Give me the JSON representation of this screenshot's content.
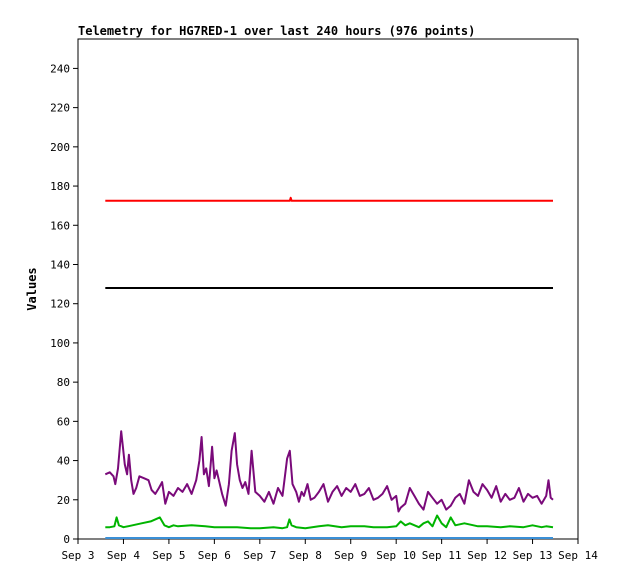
{
  "chart_data": {
    "type": "line",
    "title": "Telemetry for HG7RED-1 over last 240 hours (976 points)",
    "xlabel": "",
    "ylabel": "Values",
    "ylim": [
      0,
      255
    ],
    "yticks": [
      0,
      20,
      40,
      60,
      80,
      100,
      120,
      140,
      160,
      180,
      200,
      220,
      240
    ],
    "x_tick_labels": [
      "Sep 3",
      "Sep 4",
      "Sep 5",
      "Sep 6",
      "Sep 7",
      "Sep 8",
      "Sep 9",
      "Sep 10",
      "Sep 11",
      "Sep 12",
      "Sep 13",
      "Sep 14"
    ],
    "x_tick_days": [
      3,
      4,
      5,
      6,
      7,
      8,
      9,
      10,
      11,
      12,
      13,
      14
    ],
    "xlim_days": [
      3,
      14
    ],
    "grid": false,
    "series": [
      {
        "color": "#ff0000",
        "x_days": [
          3.6,
          7.66,
          7.68,
          7.7,
          13.45
        ],
        "values": [
          172.5,
          172.5,
          174,
          172.5,
          172.5
        ]
      },
      {
        "color": "#000000",
        "x_days": [
          3.6,
          13.45
        ],
        "values": [
          128,
          128
        ]
      },
      {
        "color": "#7a0a7a",
        "x_days": [
          3.6,
          3.7,
          3.78,
          3.82,
          3.88,
          3.95,
          4.03,
          4.08,
          4.12,
          4.17,
          4.22,
          4.28,
          4.35,
          4.45,
          4.55,
          4.62,
          4.7,
          4.78,
          4.85,
          4.92,
          5.0,
          5.1,
          5.2,
          5.3,
          5.4,
          5.5,
          5.6,
          5.67,
          5.72,
          5.77,
          5.82,
          5.88,
          5.95,
          6.0,
          6.05,
          6.1,
          6.17,
          6.25,
          6.32,
          6.38,
          6.45,
          6.5,
          6.56,
          6.62,
          6.68,
          6.75,
          6.82,
          6.9,
          7.0,
          7.1,
          7.2,
          7.3,
          7.4,
          7.5,
          7.6,
          7.66,
          7.72,
          7.8,
          7.86,
          7.92,
          7.97,
          8.05,
          8.12,
          8.2,
          8.3,
          8.4,
          8.5,
          8.6,
          8.7,
          8.8,
          8.9,
          9.0,
          9.1,
          9.2,
          9.3,
          9.4,
          9.5,
          9.6,
          9.7,
          9.8,
          9.9,
          10.0,
          10.05,
          10.1,
          10.2,
          10.3,
          10.4,
          10.5,
          10.6,
          10.7,
          10.8,
          10.9,
          11.0,
          11.1,
          11.2,
          11.3,
          11.4,
          11.5,
          11.6,
          11.7,
          11.8,
          11.9,
          12.0,
          12.1,
          12.2,
          12.3,
          12.4,
          12.5,
          12.6,
          12.7,
          12.8,
          12.9,
          13.0,
          13.1,
          13.2,
          13.3,
          13.35,
          13.4,
          13.45
        ],
        "values": [
          33,
          34,
          32,
          28,
          36,
          55,
          38,
          33,
          43,
          30,
          23,
          26,
          32,
          31,
          30,
          25,
          23,
          26,
          29,
          18,
          24,
          22,
          26,
          24,
          28,
          23,
          30,
          40,
          52,
          33,
          36,
          27,
          47,
          31,
          35,
          30,
          23,
          17,
          28,
          45,
          54,
          38,
          30,
          26,
          29,
          23,
          45,
          24,
          22,
          19,
          24,
          18,
          26,
          22,
          41,
          45,
          28,
          24,
          19,
          24,
          22,
          28,
          20,
          21,
          24,
          28,
          19,
          24,
          27,
          22,
          26,
          24,
          28,
          22,
          23,
          26,
          20,
          21,
          23,
          27,
          20,
          22,
          14,
          16,
          18,
          26,
          22,
          18,
          15,
          24,
          21,
          18,
          20,
          15,
          17,
          21,
          23,
          18,
          30,
          24,
          22,
          28,
          25,
          21,
          27,
          19,
          23,
          20,
          21,
          26,
          19,
          23,
          21,
          22,
          18,
          22,
          30,
          21,
          20
        ],
        "name": ""
      },
      {
        "color": "#00b400",
        "x_days": [
          3.6,
          3.7,
          3.8,
          3.85,
          3.9,
          4.0,
          4.2,
          4.4,
          4.6,
          4.8,
          4.9,
          5.0,
          5.1,
          5.2,
          5.5,
          5.8,
          6.0,
          6.3,
          6.5,
          6.8,
          7.0,
          7.3,
          7.5,
          7.6,
          7.65,
          7.7,
          7.8,
          8.0,
          8.3,
          8.5,
          8.8,
          9.0,
          9.3,
          9.5,
          9.8,
          10.0,
          10.1,
          10.2,
          10.3,
          10.5,
          10.6,
          10.7,
          10.8,
          10.9,
          11.0,
          11.1,
          11.2,
          11.3,
          11.5,
          11.8,
          12.0,
          12.3,
          12.5,
          12.8,
          13.0,
          13.2,
          13.3,
          13.45
        ],
        "values": [
          6,
          6,
          6.5,
          11,
          7,
          6,
          7,
          8,
          9,
          11,
          7,
          6,
          7,
          6.5,
          7,
          6.5,
          6,
          6,
          6,
          5.5,
          5.5,
          6,
          5.5,
          6,
          10,
          7,
          6,
          5.5,
          6.5,
          7,
          6,
          6.5,
          6.5,
          6,
          6,
          6.5,
          9,
          7,
          8,
          6,
          8,
          9,
          6.5,
          12,
          8,
          6,
          11,
          7,
          8,
          6.5,
          6.5,
          6,
          6.5,
          6,
          7,
          6,
          6.5,
          6
        ],
        "name": ""
      },
      {
        "color": "#3a8fd6",
        "x_days": [
          3.6,
          13.45
        ],
        "values": [
          0.5,
          0.5
        ]
      }
    ]
  }
}
